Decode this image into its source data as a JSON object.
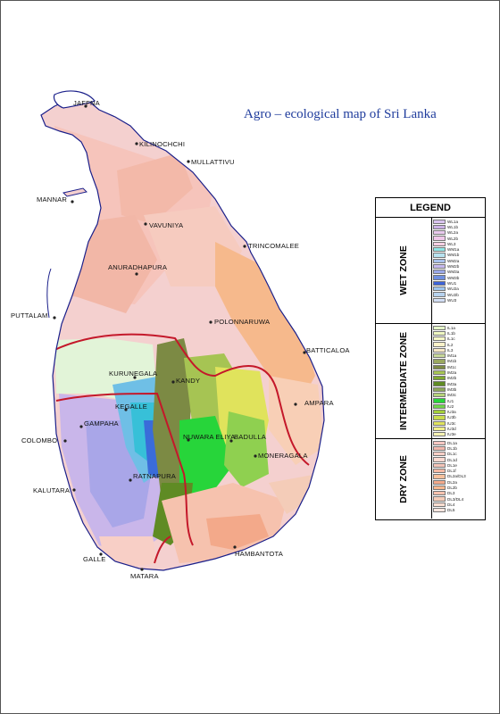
{
  "map": {
    "title": "Agro – ecological map of Sri Lanka",
    "places": [
      {
        "id": "jaffna",
        "name": "JAFFNA"
      },
      {
        "id": "kilinochchi",
        "name": "KILINOCHCHI"
      },
      {
        "id": "mullattivu",
        "name": "MULLATTIVU"
      },
      {
        "id": "mannar",
        "name": "MANNAR"
      },
      {
        "id": "vavuniya",
        "name": "VAVUNIYA"
      },
      {
        "id": "trincomalee",
        "name": "TRINCOMALEE"
      },
      {
        "id": "anuradhapura",
        "name": "ANURADHAPURA"
      },
      {
        "id": "puttalam",
        "name": "PUTTALAM"
      },
      {
        "id": "polonnaruwa",
        "name": "POLONNARUWA"
      },
      {
        "id": "batticaloa",
        "name": "BATTICALOA"
      },
      {
        "id": "kurunegala",
        "name": "KURUNEGALA"
      },
      {
        "id": "kandy",
        "name": "KANDY"
      },
      {
        "id": "ampara",
        "name": "AMPARA"
      },
      {
        "id": "kegalle",
        "name": "KEGALLE"
      },
      {
        "id": "gampaha",
        "name": "GAMPAHA"
      },
      {
        "id": "nuwara-eliya",
        "name": "NUWARA ELIYA"
      },
      {
        "id": "badulla",
        "name": "BADULLA"
      },
      {
        "id": "colombo",
        "name": "COLOMBO"
      },
      {
        "id": "moneragala",
        "name": "MONERAGALA"
      },
      {
        "id": "ratnapura",
        "name": "RATNAPURA"
      },
      {
        "id": "kalutara",
        "name": "KALUTARA"
      },
      {
        "id": "hambantota",
        "name": "HAMBANTOTA"
      },
      {
        "id": "galle",
        "name": "GALLE"
      },
      {
        "id": "matara",
        "name": "MATARA"
      }
    ]
  },
  "legend": {
    "title": "LEGEND",
    "zones": [
      {
        "name": "WET ZONE",
        "codes": [
          "WL1a",
          "WL1b",
          "WL2a",
          "WL2b",
          "WL3",
          "WM1a",
          "WM1b",
          "WM2a",
          "WM2b",
          "WM3a",
          "WM3b",
          "WU1",
          "WU2a",
          "WU2b",
          "WU3"
        ],
        "colors": [
          "#d9c3ef",
          "#cbb0e6",
          "#e9c9ee",
          "#f0c8ea",
          "#f6cfe3",
          "#8fe6e6",
          "#b8e3f0",
          "#a9c1ec",
          "#c6b9ef",
          "#9aa8e8",
          "#6f8fe0",
          "#3d63d8",
          "#9ec4ee",
          "#b6d2ee",
          "#d2def5"
        ]
      },
      {
        "name": "INTERMEDIATE ZONE",
        "codes": [
          "IL1a",
          "IL1b",
          "IL1c",
          "IL2",
          "IL3",
          "IM1a",
          "IM1b",
          "IM1c",
          "IM2a",
          "IM2b",
          "IM3a",
          "IM3b",
          "IM3c",
          "IU1",
          "IU2",
          "IU3a",
          "IU3b",
          "IU3c",
          "IU3d",
          "IU3e"
        ],
        "colors": [
          "#e4f5c8",
          "#eef7c0",
          "#f5f7c6",
          "#fbf2c9",
          "#f7e8c4",
          "#c8d89a",
          "#9aa860",
          "#7c8a44",
          "#a6c453",
          "#7fa830",
          "#5f8b24",
          "#8da75a",
          "#b5d37a",
          "#27d53a",
          "#6fd54b",
          "#a3cf3a",
          "#c9dc4e",
          "#e0e35c",
          "#f1ef8a",
          "#f6f2b2"
        ]
      },
      {
        "name": "DRY ZONE",
        "codes": [
          "DL1a",
          "DL1b",
          "DL1c",
          "DL1d",
          "DL1e",
          "DL1f",
          "DL2a/DL3",
          "DL2a",
          "DL2b",
          "DL3",
          "DL3/DL4",
          "DL4",
          "DL5"
        ],
        "colors": [
          "#f6c7c2",
          "#f2b8ad",
          "#f8cfc6",
          "#fbd9d0",
          "#f3c4b8",
          "#f5b9a4",
          "#f6c19d",
          "#f3a98a",
          "#f8b88f",
          "#f6c2ae",
          "#f4ccb8",
          "#f9ddd0",
          "#fbe6df"
        ]
      }
    ]
  }
}
